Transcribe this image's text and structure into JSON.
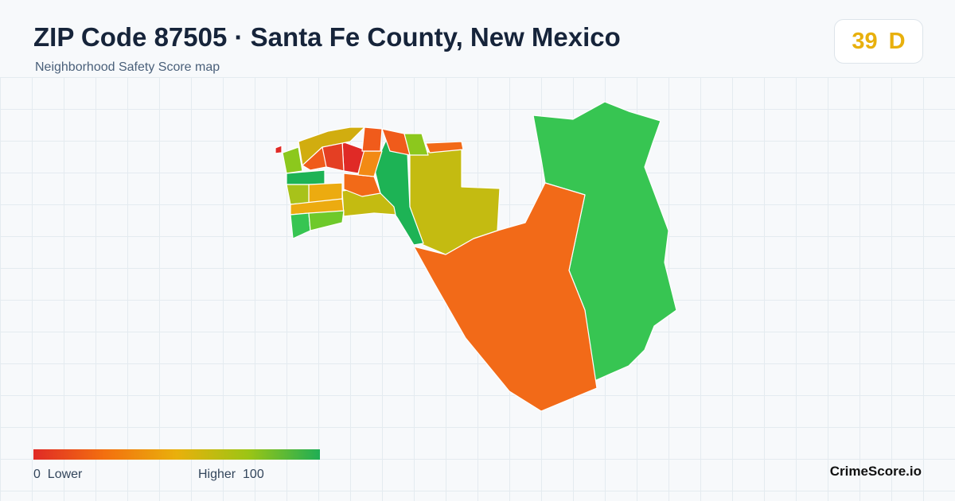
{
  "header": {
    "title": "ZIP Code 87505 · Santa Fe County, New Mexico",
    "subtitle": "Neighborhood Safety Score map"
  },
  "score": {
    "value": "39",
    "grade": "D"
  },
  "legend": {
    "min": "0",
    "min_label": "Lower",
    "max_label": "Higher",
    "max": "100"
  },
  "footer": {
    "brand": "CrimeScore.io"
  }
}
